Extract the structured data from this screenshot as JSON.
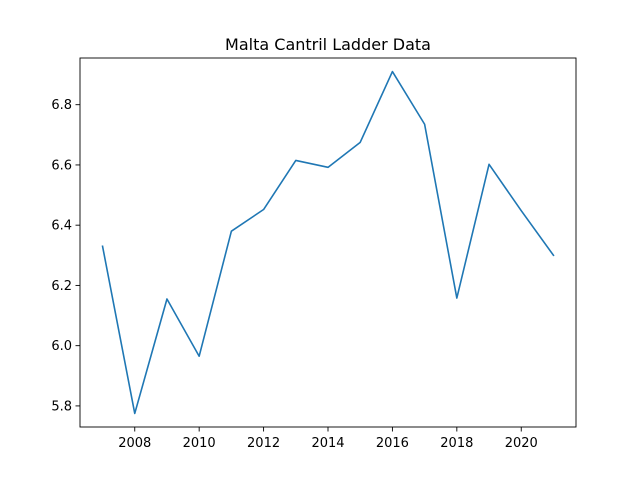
{
  "chart_data": {
    "type": "line",
    "title": "Malta Cantril Ladder Data",
    "xlabel": "",
    "ylabel": "",
    "x": [
      2007,
      2008,
      2009,
      2010,
      2011,
      2012,
      2013,
      2014,
      2015,
      2016,
      2017,
      2018,
      2019,
      2020,
      2021
    ],
    "series": [
      {
        "values": [
          6.33,
          5.775,
          6.155,
          5.965,
          6.38,
          6.452,
          6.615,
          6.592,
          6.675,
          6.91,
          6.735,
          6.158,
          6.602,
          6.448,
          6.3
        ]
      }
    ],
    "xlim": [
      2006.3,
      2021.7
    ],
    "ylim": [
      5.73,
      6.955
    ],
    "xticks": [
      2008,
      2010,
      2012,
      2014,
      2016,
      2018,
      2020
    ],
    "xtick_labels": [
      "2008",
      "2010",
      "2012",
      "2014",
      "2016",
      "2018",
      "2020"
    ],
    "yticks": [
      5.8,
      6.0,
      6.2,
      6.4,
      6.6,
      6.8
    ],
    "ytick_labels": [
      "5.8",
      "6.0",
      "6.2",
      "6.4",
      "6.6",
      "6.8"
    ],
    "grid": false,
    "line_color": "#1f77b4"
  }
}
